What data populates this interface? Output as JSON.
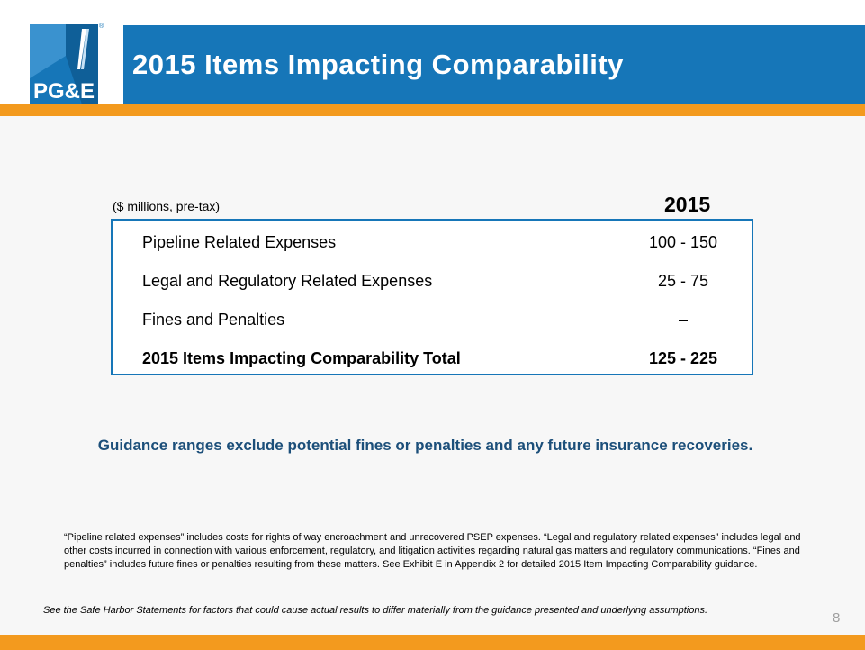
{
  "header": {
    "title": "2015 Items Impacting Comparability",
    "logo_text": "PG&E",
    "logo_mark": "®"
  },
  "table": {
    "unit_label": "($ millions, pre-tax)",
    "year_header": "2015",
    "rows": [
      {
        "label": "Pipeline Related Expenses",
        "value": "100 - 150"
      },
      {
        "label": "Legal and Regulatory Related Expenses",
        "value": "25 - 75"
      },
      {
        "label": "Fines and Penalties",
        "value": "–"
      },
      {
        "label": "2015 Items Impacting Comparability Total",
        "value": "125 - 225"
      }
    ]
  },
  "guidance": "Guidance ranges exclude potential fines or penalties and any future insurance recoveries.",
  "footnote": "“Pipeline related expenses” includes costs for rights of way encroachment and unrecovered PSEP expenses.  “Legal and regulatory related expenses” includes legal and other costs incurred in connection with various enforcement, regulatory, and litigation activities regarding natural gas matters and regulatory communications.  “Fines and penalties” includes future fines or penalties resulting from these matters. See Exhibit E in Appendix 2 for detailed 2015 Item Impacting Comparability guidance.",
  "safe_harbor": "See the Safe Harbor Statements for factors that could cause actual results to differ materially from the guidance presented and underlying assumptions.",
  "page_number": "8",
  "colors": {
    "brand_blue": "#1676b8",
    "brand_orange": "#f39a1e",
    "guidance_text": "#1c4f7a"
  }
}
